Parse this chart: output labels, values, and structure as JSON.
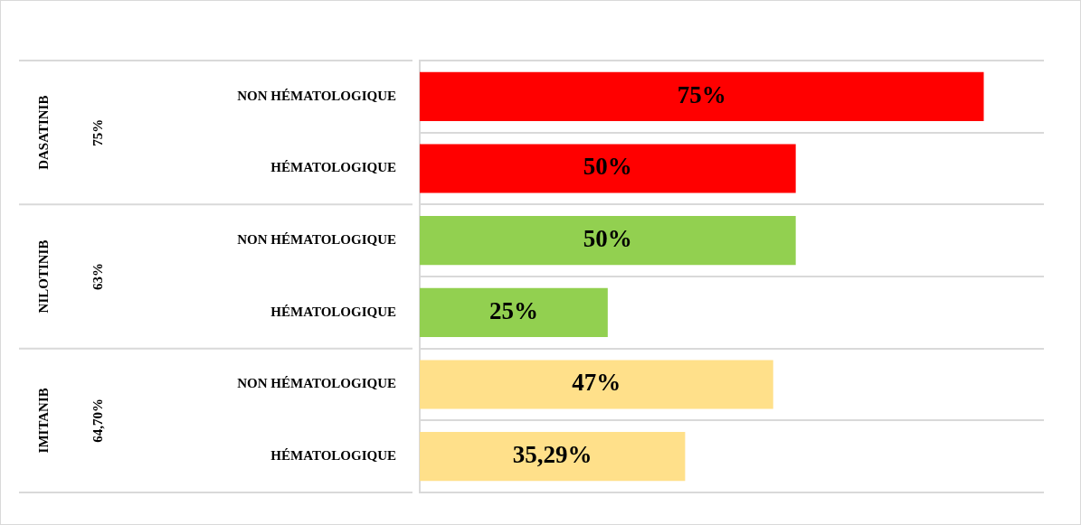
{
  "chart_data": {
    "type": "bar",
    "orientation": "horizontal",
    "categories": [
      "NON HÉMATOLOGIQUE",
      "HÉMATOLOGIQUE",
      "NON HÉMATOLOGIQUE",
      "HÉMATOLOGIQUE",
      "NON HÉMATOLOGIQUE",
      "HÉMATOLOGIQUE"
    ],
    "values": [
      75,
      50,
      50,
      25,
      47,
      35.29
    ],
    "colors": [
      "#ff0000",
      "#ff0000",
      "#92d050",
      "#92d050",
      "#ffe08a",
      "#ffe08a"
    ],
    "value_labels": [
      "75%",
      "50%",
      "50%",
      "25%",
      "47%",
      "35,29%"
    ],
    "xlim": [
      0,
      83
    ],
    "tick_labels": "y",
    "annotations": [
      "DASATINIB",
      "75%",
      "NILOTINIB",
      "63%",
      "IMITANIB",
      "64,70%"
    ]
  }
}
